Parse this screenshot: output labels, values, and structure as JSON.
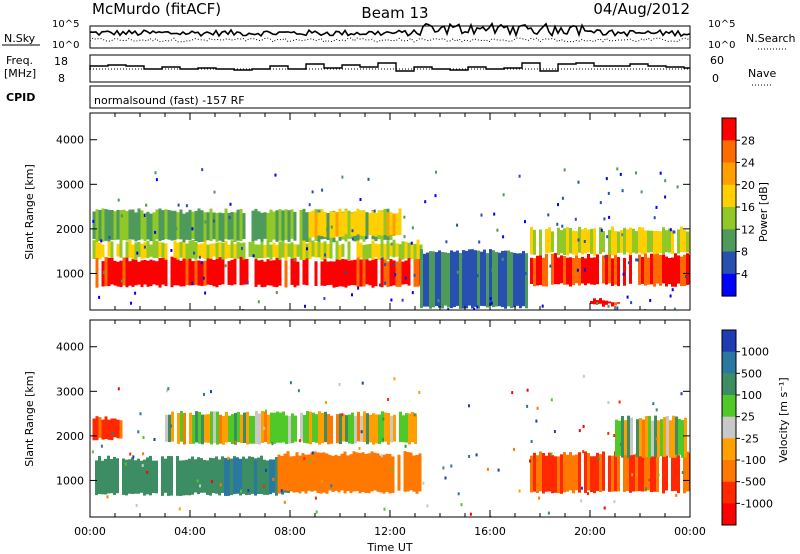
{
  "header": {
    "station": "McMurdo (fitACF)",
    "beam": "Beam 13",
    "date": "04/Aug/2012"
  },
  "panels": {
    "nsky_label": "N.Sky",
    "nsearch_label": "N.Search",
    "nsky_ticks": [
      "10^5",
      "10^0"
    ],
    "freq_label_top": "Freq.",
    "freq_label_bottom": "[MHz]",
    "freq_ticks": [
      "18",
      "8"
    ],
    "nave_label": "Nave",
    "nave_ticks": [
      "60",
      "0"
    ],
    "cpid_label": "CPID",
    "cpid_text": "normalsound (fast) -157 RF"
  },
  "colorbars": {
    "power": {
      "label": "Power [dB]",
      "ticks": [
        "28",
        "24",
        "20",
        "16",
        "12",
        "8",
        "4"
      ],
      "colors": [
        "#ff0000",
        "#ff6a00",
        "#ffa000",
        "#ffd000",
        "#90c828",
        "#4e9a5a",
        "#2850b0",
        "#0000ff"
      ]
    },
    "velocity": {
      "label": "Velocity [m s⁻¹]",
      "ticks": [
        "1000",
        "500",
        "100",
        "25",
        "-25",
        "-100",
        "-500",
        "-1000"
      ],
      "colors": [
        "#1e3cb4",
        "#2a78a0",
        "#3c8c64",
        "#50c828",
        "#c8c8c8",
        "#ffa000",
        "#ff7800",
        "#ff2800",
        "#ff0000"
      ]
    }
  },
  "axes": {
    "ylabel": "Slant Range [km]",
    "xlabel": "Time UT",
    "yticks": [
      "4000",
      "3000",
      "2000",
      "1000"
    ],
    "xticks": [
      "00:00",
      "04:00",
      "08:00",
      "12:00",
      "16:00",
      "20:00",
      "00:00"
    ]
  },
  "chart_data": [
    {
      "type": "heatmap",
      "title": "",
      "xlabel": "",
      "ylabel": "Slant Range [km]",
      "x_range_hours": [
        0,
        24
      ],
      "y_range_km": [
        180,
        4600
      ],
      "colorbar": "Power [dB]",
      "colorbar_range": [
        0,
        30
      ],
      "regions": [
        {
          "t": [
            0.1,
            13.2
          ],
          "range_km": [
            680,
            1320
          ],
          "power_db": 28
        },
        {
          "t": [
            0.1,
            13.2
          ],
          "range_km": [
            1300,
            1700
          ],
          "power_db": 14
        },
        {
          "t": [
            0.1,
            12.0
          ],
          "range_km": [
            1700,
            2400
          ],
          "power_db": 10
        },
        {
          "t": [
            8.5,
            12.5
          ],
          "range_km": [
            1800,
            2400
          ],
          "power_db": 16
        },
        {
          "t": [
            13.2,
            17.5
          ],
          "range_km": [
            200,
            1500
          ],
          "power_db": 6
        },
        {
          "t": [
            17.6,
            24.0
          ],
          "range_km": [
            700,
            1400
          ],
          "power_db": 26
        },
        {
          "t": [
            17.6,
            24.0
          ],
          "range_km": [
            1400,
            2000
          ],
          "power_db": 14
        },
        {
          "t": [
            20.0,
            21.2
          ],
          "range_km": [
            250,
            400
          ],
          "power_db": 26
        }
      ]
    },
    {
      "type": "heatmap",
      "title": "",
      "xlabel": "Time UT",
      "ylabel": "Slant Range [km]",
      "x_range_hours": [
        0,
        24
      ],
      "y_range_km": [
        180,
        4600
      ],
      "colorbar": "Velocity [m s⁻¹]",
      "regions": [
        {
          "t": [
            0.2,
            7.0
          ],
          "range_km": [
            650,
            1500
          ],
          "velocity_ms": 200
        },
        {
          "t": [
            5.0,
            8.0
          ],
          "range_km": [
            650,
            1500
          ],
          "velocity_ms": 300
        },
        {
          "t": [
            7.5,
            13.2
          ],
          "range_km": [
            700,
            1600
          ],
          "velocity_ms": -200
        },
        {
          "t": [
            3.0,
            13.0
          ],
          "range_km": [
            1800,
            2500
          ],
          "velocity_ms": 0
        },
        {
          "t": [
            0.1,
            1.2
          ],
          "range_km": [
            1900,
            2400
          ],
          "velocity_ms": -300
        },
        {
          "t": [
            17.6,
            24.0
          ],
          "range_km": [
            700,
            1600
          ],
          "velocity_ms": -300
        },
        {
          "t": [
            21.0,
            24.0
          ],
          "range_km": [
            1500,
            2400
          ],
          "velocity_ms": 0
        }
      ]
    }
  ]
}
